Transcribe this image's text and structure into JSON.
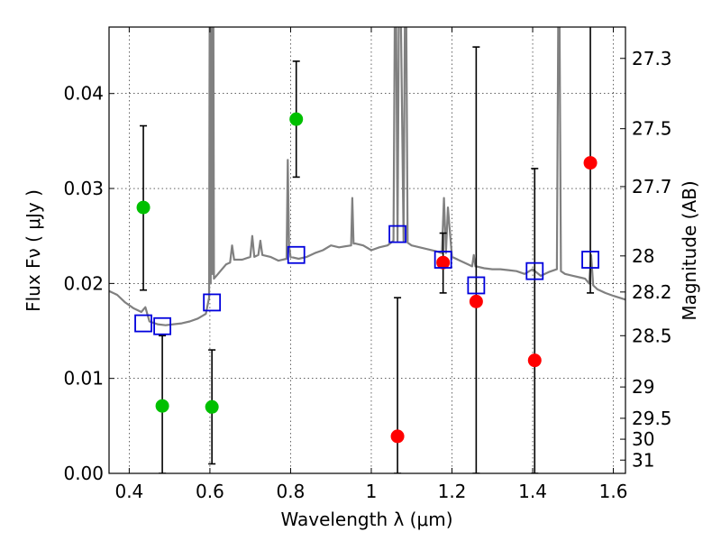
{
  "chart_data": {
    "type": "scatter",
    "title": "",
    "xlabel": "Wavelength  λ (μm)",
    "ylabel": "Flux  Fν  ( μJy )",
    "y2label": "Magnitude (AB)",
    "xlim": [
      0.35,
      1.63
    ],
    "ylim": [
      0.0,
      0.047
    ],
    "grid": true,
    "x_ticks": [
      0.4,
      0.6,
      0.8,
      1.0,
      1.2,
      1.4,
      1.6
    ],
    "x_tick_labels": [
      "0.4",
      "0.6",
      "0.8",
      "1",
      "1.2",
      "1.4",
      "1.6"
    ],
    "y_ticks": [
      0.0,
      0.01,
      0.02,
      0.03,
      0.04
    ],
    "y_tick_labels": [
      "0.00",
      "0.01",
      "0.02",
      "0.03",
      "0.04"
    ],
    "mag_ticks": [
      {
        "label": "27.3",
        "flux": 0.0437
      },
      {
        "label": "27.5",
        "flux": 0.0363
      },
      {
        "label": "27.7",
        "flux": 0.0302
      },
      {
        "label": "28",
        "flux": 0.0229
      },
      {
        "label": "28.2",
        "flux": 0.0191
      },
      {
        "label": "28.5",
        "flux": 0.0145
      },
      {
        "label": "29",
        "flux": 0.0091
      },
      {
        "label": "29.5",
        "flux": 0.0058
      },
      {
        "label": "30",
        "flux": 0.0036
      },
      {
        "label": "31",
        "flux": 0.0014
      }
    ],
    "series": [
      {
        "name": "model-spectrum",
        "kind": "line",
        "color": "#808080",
        "x": [
          0.35,
          0.37,
          0.39,
          0.41,
          0.43,
          0.44,
          0.45,
          0.47,
          0.49,
          0.51,
          0.53,
          0.55,
          0.57,
          0.59,
          0.598,
          0.6,
          0.602,
          0.604,
          0.606,
          0.608,
          0.61,
          0.62,
          0.63,
          0.64,
          0.65,
          0.655,
          0.66,
          0.68,
          0.7,
          0.705,
          0.71,
          0.72,
          0.725,
          0.73,
          0.75,
          0.77,
          0.79,
          0.793,
          0.796,
          0.8,
          0.82,
          0.84,
          0.86,
          0.88,
          0.9,
          0.92,
          0.95,
          0.953,
          0.956,
          0.96,
          0.98,
          1.0,
          1.02,
          1.04,
          1.055,
          1.06,
          1.065,
          1.07,
          1.08,
          1.085,
          1.09,
          1.1,
          1.12,
          1.14,
          1.16,
          1.175,
          1.18,
          1.185,
          1.19,
          1.2,
          1.22,
          1.24,
          1.25,
          1.254,
          1.258,
          1.26,
          1.28,
          1.3,
          1.32,
          1.34,
          1.36,
          1.38,
          1.4,
          1.42,
          1.44,
          1.46,
          1.465,
          1.47,
          1.48,
          1.5,
          1.52,
          1.53,
          1.54,
          1.545,
          1.55,
          1.56,
          1.58,
          1.6,
          1.63
        ],
        "y": [
          0.0192,
          0.0188,
          0.018,
          0.0174,
          0.017,
          0.0175,
          0.016,
          0.0157,
          0.0156,
          0.0157,
          0.0158,
          0.016,
          0.0163,
          0.0168,
          0.0185,
          0.06,
          0.02,
          0.06,
          0.021,
          0.06,
          0.0205,
          0.021,
          0.0215,
          0.022,
          0.0222,
          0.024,
          0.0225,
          0.0225,
          0.0228,
          0.025,
          0.0228,
          0.023,
          0.0245,
          0.023,
          0.0228,
          0.0224,
          0.0226,
          0.033,
          0.024,
          0.0228,
          0.0226,
          0.0228,
          0.0232,
          0.0235,
          0.024,
          0.0238,
          0.024,
          0.029,
          0.0242,
          0.0242,
          0.024,
          0.0235,
          0.0238,
          0.024,
          0.0245,
          0.06,
          0.0245,
          0.06,
          0.0245,
          0.06,
          0.0243,
          0.024,
          0.0238,
          0.0236,
          0.0234,
          0.0232,
          0.029,
          0.0232,
          0.028,
          0.0228,
          0.0224,
          0.022,
          0.0218,
          0.023,
          0.0218,
          0.0218,
          0.0216,
          0.0215,
          0.0215,
          0.0214,
          0.0213,
          0.021,
          0.0215,
          0.0208,
          0.0212,
          0.0215,
          0.06,
          0.0213,
          0.021,
          0.0208,
          0.0206,
          0.0205,
          0.02,
          0.023,
          0.0198,
          0.0194,
          0.019,
          0.0187,
          0.0183
        ]
      },
      {
        "name": "photometry-green",
        "kind": "points",
        "color": "#00c000",
        "points": [
          {
            "x": 0.435,
            "y": 0.028,
            "lo": 0.0193,
            "hi": 0.0366
          },
          {
            "x": 0.482,
            "y": 0.0071,
            "lo": 0.0,
            "hi": 0.0145
          },
          {
            "x": 0.605,
            "y": 0.007,
            "lo": 0.001,
            "hi": 0.013
          },
          {
            "x": 0.814,
            "y": 0.0373,
            "lo": 0.0312,
            "hi": 0.0434
          }
        ]
      },
      {
        "name": "photometry-red",
        "kind": "points",
        "color": "#ff0000",
        "points": [
          {
            "x": 1.065,
            "y": 0.0039,
            "lo": 0.0,
            "hi": 0.0185
          },
          {
            "x": 1.178,
            "y": 0.0222,
            "lo": 0.019,
            "hi": 0.0253
          },
          {
            "x": 1.26,
            "y": 0.0181,
            "lo": 0.0,
            "hi": 0.0449
          },
          {
            "x": 1.405,
            "y": 0.0119,
            "lo": 0.0,
            "hi": 0.0321
          },
          {
            "x": 1.543,
            "y": 0.0327,
            "lo": 0.019,
            "hi": 0.05
          }
        ]
      },
      {
        "name": "model-synthetic-magnitudes",
        "kind": "squares",
        "color": "#0000dd",
        "points": [
          {
            "x": 0.435,
            "y": 0.0158
          },
          {
            "x": 0.482,
            "y": 0.0155
          },
          {
            "x": 0.605,
            "y": 0.018
          },
          {
            "x": 0.814,
            "y": 0.023
          },
          {
            "x": 1.065,
            "y": 0.0252
          },
          {
            "x": 1.178,
            "y": 0.0225
          },
          {
            "x": 1.26,
            "y": 0.0198
          },
          {
            "x": 1.405,
            "y": 0.0213
          },
          {
            "x": 1.543,
            "y": 0.0225
          }
        ]
      }
    ]
  }
}
